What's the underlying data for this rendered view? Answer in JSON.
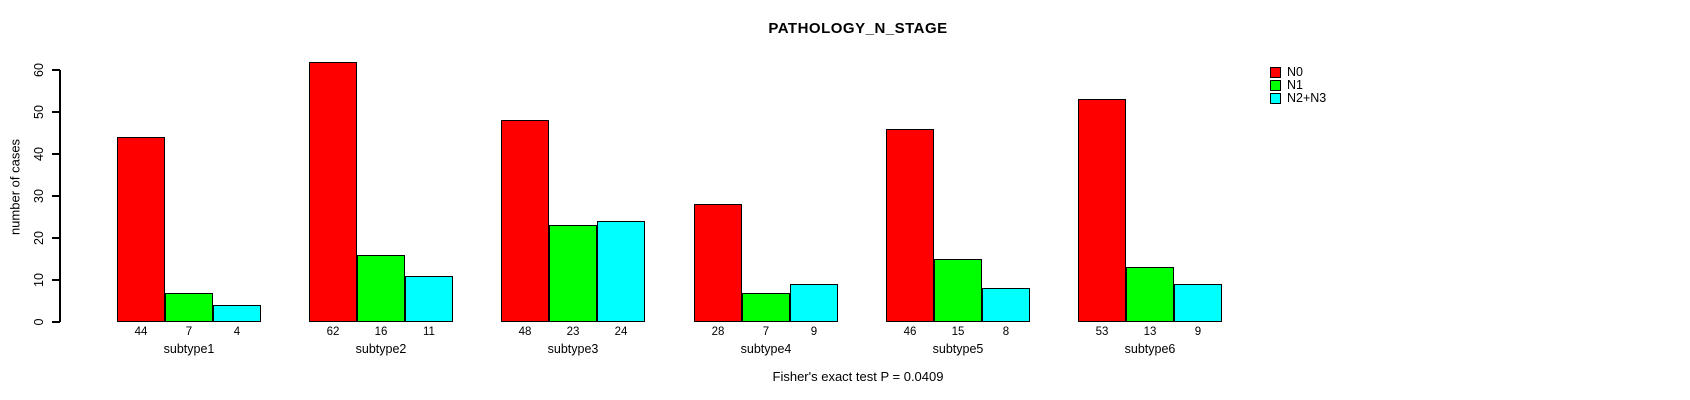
{
  "title": "PATHOLOGY_N_STAGE",
  "footer": "Fisher's exact test P = 0.0409",
  "chart_data": {
    "type": "bar",
    "title": "PATHOLOGY_N_STAGE",
    "subtitle": "Fisher's exact test P = 0.0409",
    "categories": [
      "subtype1",
      "subtype2",
      "subtype3",
      "subtype4",
      "subtype5",
      "subtype6"
    ],
    "series": [
      {
        "name": "N0",
        "color": "#ff0000",
        "values": [
          44,
          62,
          48,
          28,
          46,
          53
        ]
      },
      {
        "name": "N1",
        "color": "#00ff00",
        "values": [
          7,
          16,
          23,
          7,
          15,
          13
        ]
      },
      {
        "name": "N2+N3",
        "color": "#00ffff",
        "values": [
          4,
          11,
          24,
          9,
          8,
          9
        ]
      }
    ],
    "xlabel": "",
    "ylabel": "number of cases",
    "ylim": [
      0,
      60
    ],
    "yticks": [
      0,
      10,
      20,
      30,
      40,
      50,
      60
    ],
    "grid": false,
    "bar_value_labels": true,
    "legend_position": "top-right"
  }
}
